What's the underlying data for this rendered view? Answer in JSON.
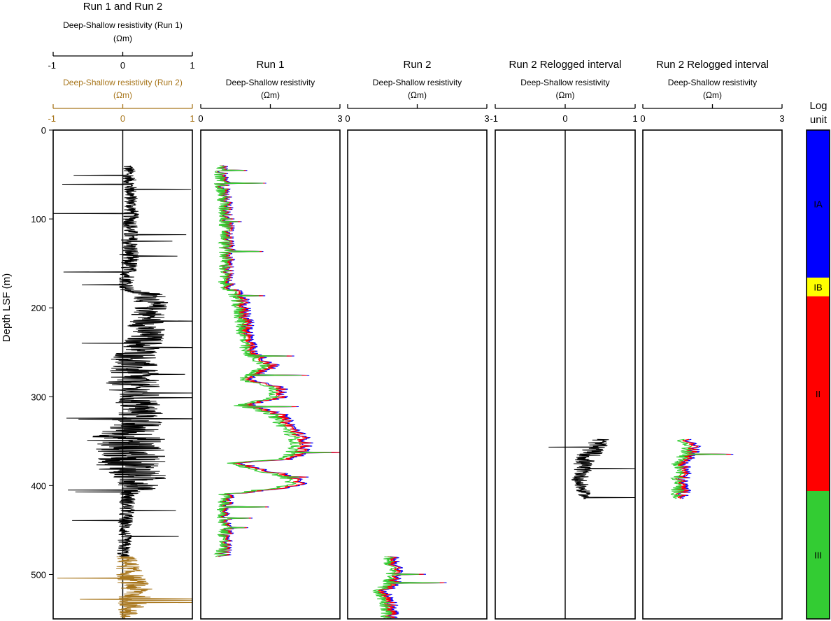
{
  "y_axis": {
    "label": "Depth LSF (m)",
    "ticks": [
      0,
      100,
      200,
      300,
      400,
      500
    ],
    "range": [
      0,
      550
    ],
    "reversed": true
  },
  "tracks": [
    {
      "id": "run1and2",
      "title": "Run 1 and Run 2",
      "scales": [
        {
          "subtitle": "Deep-Shallow resistivity (Run 1)",
          "unit": "(Ωm)",
          "min": -1,
          "max": 1,
          "ticks": [
            -1,
            0,
            1
          ],
          "tick_labels": [
            "-1",
            "0",
            "1"
          ],
          "color": "#000000"
        },
        {
          "subtitle": "Deep-Shallow resistivity (Run 2)",
          "unit": "(Ωm)",
          "min": -1,
          "max": 1,
          "ticks": [
            -1,
            0,
            1
          ],
          "tick_labels": [
            "-1",
            "0",
            "1"
          ],
          "color": "#a8761c"
        }
      ],
      "zero_line": true
    },
    {
      "id": "run1",
      "title": "Run 1",
      "scales": [
        {
          "subtitle": "Deep-Shallow resistivity",
          "unit": "(Ωm)",
          "min": 0,
          "max": 3,
          "ticks": [
            0,
            1.5,
            3
          ],
          "tick_labels": [
            "0",
            "",
            "3"
          ],
          "color": "#000000"
        }
      ],
      "zero_line": false
    },
    {
      "id": "run2",
      "title": "Run 2",
      "scales": [
        {
          "subtitle": "Deep-Shallow resistivity",
          "unit": "(Ωm)",
          "min": 0,
          "max": 3,
          "ticks": [
            0,
            1.5,
            3
          ],
          "tick_labels": [
            "0",
            "",
            "3"
          ],
          "color": "#000000"
        }
      ],
      "zero_line": false
    },
    {
      "id": "relog1",
      "title": "Run 2 Relogged interval",
      "scales": [
        {
          "subtitle": "Deep-Shallow resistivity",
          "unit": "(Ωm)",
          "min": -1,
          "max": 1,
          "ticks": [
            -1,
            0,
            1
          ],
          "tick_labels": [
            "-1",
            "0",
            "1"
          ],
          "color": "#000000"
        }
      ],
      "zero_line": true
    },
    {
      "id": "relog2",
      "title": "Run 2 Relogged interval",
      "scales": [
        {
          "subtitle": "Deep-Shallow resistivity",
          "unit": "(Ωm)",
          "min": 0,
          "max": 3,
          "ticks": [
            0,
            1.5,
            3
          ],
          "tick_labels": [
            "0",
            "",
            "3"
          ],
          "color": "#000000"
        }
      ],
      "zero_line": false
    }
  ],
  "log_units": {
    "header": [
      "Log",
      "unit"
    ],
    "units": [
      {
        "label": "IA",
        "top": 0,
        "bottom": 166,
        "color": "#0000ff"
      },
      {
        "label": "IB",
        "top": 166,
        "bottom": 187,
        "color": "#ffff00"
      },
      {
        "label": "II",
        "top": 187,
        "bottom": 406,
        "color": "#ff0000"
      },
      {
        "label": "III",
        "top": 406,
        "bottom": 550,
        "color": "#33cc33"
      }
    ]
  },
  "colors": {
    "run1_diff": "#000000",
    "run2_diff": "#a8761c",
    "deep": "#0000ff",
    "medium": "#ff0000",
    "shallow": "#33cc33"
  },
  "chart_data": {
    "type": "line",
    "orientation": "vertical depth log",
    "title": "",
    "ylabel": "Depth LSF (m)",
    "ylim": [
      0,
      550
    ],
    "tracks": [
      {
        "title": "Run 1 and Run 2",
        "xlim": [
          -1,
          1
        ],
        "xlabel": "Deep-Shallow resistivity (Ωm)",
        "series": [
          {
            "name": "Deep-Shallow resistivity (Run 1)",
            "color": "#000000",
            "depth": [
              40,
              60,
              80,
              100,
              120,
              140,
              160,
              180,
              185,
              200,
              220,
              240,
              260,
              280,
              300,
              320,
              340,
              350,
              360,
              380,
              400,
              410,
              430,
              450,
              470,
              480
            ],
            "value": [
              0.08,
              0.1,
              0.12,
              0.12,
              0.1,
              0.1,
              0.08,
              0.05,
              0.4,
              0.4,
              0.35,
              0.3,
              0.15,
              0.12,
              0.2,
              0.25,
              0.1,
              0.05,
              0.12,
              0.12,
              0.3,
              0.08,
              0.05,
              0.03,
              0.02,
              0.0
            ],
            "amp": [
              0.1,
              0.1,
              0.1,
              0.12,
              0.12,
              0.15,
              0.12,
              0.12,
              0.25,
              0.25,
              0.28,
              0.3,
              0.35,
              0.4,
              0.35,
              0.35,
              0.45,
              0.6,
              0.5,
              0.5,
              0.35,
              0.12,
              0.12,
              0.1,
              0.1,
              0.1
            ]
          },
          {
            "name": "Deep-Shallow resistivity (Run 2)",
            "color": "#a8761c",
            "depth": [
              480,
              500,
              520,
              540,
              550
            ],
            "value": [
              0.05,
              0.1,
              0.2,
              0.1,
              0.0
            ],
            "amp": [
              0.15,
              0.2,
              0.25,
              0.2,
              0.1
            ]
          }
        ]
      },
      {
        "title": "Run 1",
        "xlim": [
          0,
          3
        ],
        "xlabel": "Deep-Shallow resistivity (Ωm)",
        "depth": [
          40,
          60,
          80,
          100,
          120,
          140,
          160,
          170,
          190,
          210,
          230,
          250,
          265,
          280,
          290,
          300,
          310,
          320,
          330,
          340,
          350,
          360,
          370,
          375,
          380,
          390,
          400,
          410,
          430,
          450,
          470,
          480
        ],
        "series": [
          {
            "name": "Deep",
            "color": "#0000ff",
            "value": [
              0.45,
              0.5,
              0.55,
              0.6,
              0.6,
              0.6,
              0.6,
              0.55,
              0.9,
              1.0,
              1.05,
              1.1,
              1.6,
              1.0,
              1.75,
              1.8,
              1.0,
              1.75,
              1.9,
              2.1,
              2.3,
              2.25,
              2.0,
              0.8,
              1.2,
              2.0,
              2.2,
              0.6,
              0.55,
              0.6,
              0.55,
              0.5
            ]
          },
          {
            "name": "Medium",
            "color": "#ff0000",
            "value": [
              0.42,
              0.47,
              0.52,
              0.57,
              0.57,
              0.57,
              0.57,
              0.52,
              0.85,
              0.95,
              1.0,
              1.05,
              1.55,
              0.95,
              1.7,
              1.75,
              0.95,
              1.7,
              1.85,
              2.05,
              2.25,
              2.2,
              1.95,
              0.75,
              1.15,
              1.95,
              2.15,
              0.57,
              0.52,
              0.57,
              0.52,
              0.47
            ]
          },
          {
            "name": "Shallow",
            "color": "#33cc33",
            "value": [
              0.38,
              0.43,
              0.48,
              0.52,
              0.52,
              0.52,
              0.52,
              0.48,
              0.75,
              0.85,
              0.9,
              0.95,
              1.4,
              0.85,
              1.55,
              1.6,
              0.85,
              1.55,
              1.7,
              1.9,
              2.05,
              2.0,
              1.8,
              0.65,
              1.0,
              1.8,
              1.95,
              0.52,
              0.47,
              0.52,
              0.47,
              0.42
            ]
          }
        ]
      },
      {
        "title": "Run 2",
        "xlim": [
          0,
          3
        ],
        "xlabel": "Deep-Shallow resistivity (Ωm)",
        "depth": [
          480,
          490,
          500,
          510,
          520,
          530,
          540,
          550
        ],
        "series": [
          {
            "name": "Deep",
            "color": "#0000ff",
            "value": [
              1.0,
              1.05,
              1.1,
              1.0,
              0.8,
              0.95,
              1.0,
              0.95
            ]
          },
          {
            "name": "Medium",
            "color": "#ff0000",
            "value": [
              0.95,
              1.0,
              1.05,
              0.95,
              0.75,
              0.9,
              0.95,
              0.9
            ]
          },
          {
            "name": "Shallow",
            "color": "#33cc33",
            "value": [
              0.88,
              0.92,
              0.95,
              0.85,
              0.65,
              0.8,
              0.85,
              0.82
            ]
          }
        ]
      },
      {
        "title": "Run 2 Relogged interval",
        "xlim": [
          -1,
          1
        ],
        "xlabel": "Deep-Shallow resistivity (Ωm)",
        "series": [
          {
            "name": "Deep-Shallow resistivity",
            "color": "#000000",
            "depth": [
              348,
              355,
              365,
              375,
              385,
              395,
              405,
              415
            ],
            "value": [
              0.5,
              0.45,
              0.35,
              0.25,
              0.25,
              0.2,
              0.25,
              0.3
            ],
            "amp": [
              0.15,
              0.15,
              0.18,
              0.15,
              0.12,
              0.12,
              0.1,
              0.08
            ]
          }
        ]
      },
      {
        "title": "Run 2 Relogged interval",
        "xlim": [
          0,
          3
        ],
        "xlabel": "Deep-Shallow resistivity (Ωm)",
        "depth": [
          348,
          355,
          365,
          375,
          385,
          395,
          405,
          415
        ],
        "series": [
          {
            "name": "Deep",
            "color": "#0000ff",
            "value": [
              1.0,
              1.15,
              1.05,
              0.9,
              0.95,
              0.85,
              0.9,
              0.9
            ]
          },
          {
            "name": "Medium",
            "color": "#ff0000",
            "value": [
              0.95,
              1.1,
              1.0,
              0.85,
              0.9,
              0.8,
              0.85,
              0.85
            ]
          },
          {
            "name": "Shallow",
            "color": "#33cc33",
            "value": [
              0.85,
              0.95,
              0.9,
              0.75,
              0.8,
              0.72,
              0.75,
              0.75
            ]
          }
        ]
      }
    ]
  }
}
